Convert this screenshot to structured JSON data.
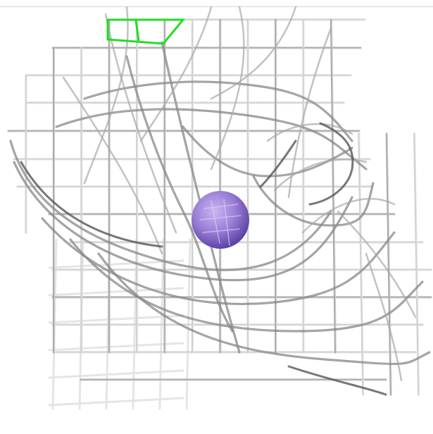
{
  "scene": {
    "description_label": "",
    "colors": {
      "background": "#ffffff",
      "mesh_light": "#cfcfcf",
      "mesh_mid": "#a8a8a8",
      "mesh_dark": "#6e6e6e",
      "sphere": "#9a7fd6",
      "sphere_shadow": "#6a4fb0",
      "selection": "#22dd22"
    }
  }
}
